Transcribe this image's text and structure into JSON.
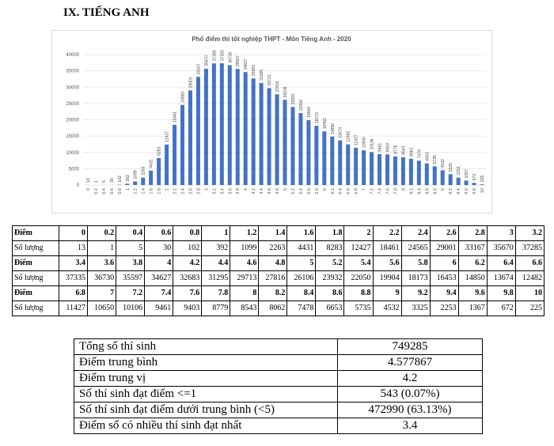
{
  "heading": "IX. TIẾNG ANH",
  "chart_data": {
    "type": "bar",
    "title": "Phổ điểm thi tốt nghiệp THPT - Môn Tiếng Anh - 2020",
    "categories": [
      "0",
      "0.2",
      "0.4",
      "0.6",
      "0.8",
      "1",
      "1.2",
      "1.4",
      "1.6",
      "1.8",
      "2",
      "2.2",
      "2.4",
      "2.6",
      "2.8",
      "3",
      "3.2",
      "3.4",
      "3.6",
      "3.8",
      "4",
      "4.2",
      "4.4",
      "4.6",
      "4.8",
      "5",
      "5.2",
      "5.4",
      "5.6",
      "5.8",
      "6",
      "6.2",
      "6.4",
      "6.6",
      "6.8",
      "7",
      "7.2",
      "7.4",
      "7.6",
      "7.8",
      "8",
      "8.2",
      "8.4",
      "8.6",
      "8.8",
      "9",
      "9.2",
      "9.4",
      "9.6",
      "9.8",
      "10"
    ],
    "values": [
      13,
      1,
      5,
      30,
      102,
      392,
      1099,
      2263,
      4431,
      8283,
      12427,
      18461,
      24565,
      29001,
      33167,
      35670,
      37285,
      37335,
      36730,
      35597,
      34627,
      32683,
      31295,
      29713,
      27816,
      26106,
      23932,
      22050,
      19904,
      18173,
      16453,
      14850,
      13674,
      12482,
      11427,
      10650,
      10106,
      9461,
      9403,
      8779,
      8543,
      8062,
      7478,
      6653,
      5735,
      4532,
      3325,
      2253,
      1367,
      672,
      225
    ],
    "ylim": [
      0,
      40000
    ],
    "yticks": [
      0,
      5000,
      10000,
      15000,
      20000,
      25000,
      30000,
      35000,
      40000
    ],
    "grid": true,
    "color": "#4472c4"
  },
  "score_table": {
    "row_labels": [
      "Điểm",
      "Số lượng"
    ]
  },
  "summary": {
    "rows": [
      [
        "Tổng số thí sinh",
        "749285"
      ],
      [
        "Điểm trung bình",
        "4.577867"
      ],
      [
        "Điểm trung vị",
        "4.2"
      ],
      [
        "Số thí sinh đạt điểm <=1",
        "543 (0.07%)"
      ],
      [
        "Số thí sinh đạt điểm dưới trung bình (<5)",
        "472990 (63.13%)"
      ],
      [
        "Điểm số có nhiều thí sinh đạt nhất",
        "3.4"
      ]
    ]
  }
}
